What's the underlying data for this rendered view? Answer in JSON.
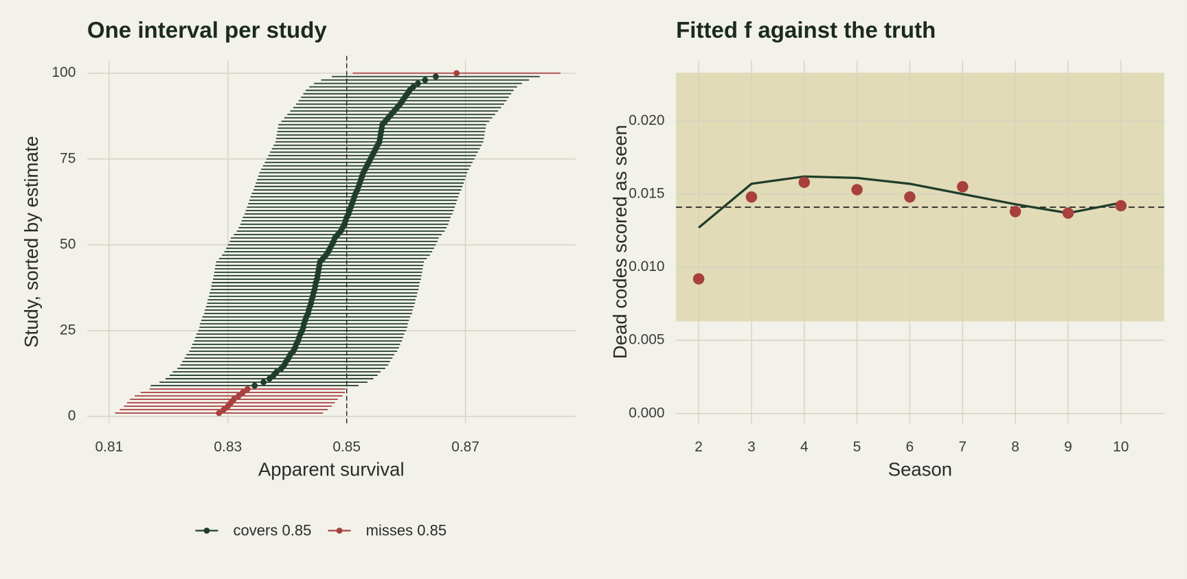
{
  "chart_data": [
    {
      "type": "interval",
      "title": "One interval per study",
      "x_label": "Apparent survival",
      "y_label": "Study, sorted by estimate",
      "xlim": [
        0.8063,
        0.8885
      ],
      "ylim": [
        -1.98,
        103.7
      ],
      "xticks": [
        0.81,
        0.83,
        0.85,
        0.87
      ],
      "yticks": [
        0,
        25,
        50,
        75,
        100
      ],
      "grid": true,
      "reference": 0.85,
      "legend": "bottom",
      "series": [
        {
          "name": "covers 0.85",
          "color": "#1f3d2a",
          "y": [
            9,
            10,
            11,
            12,
            13,
            14,
            15,
            16,
            17,
            18,
            19,
            20,
            21,
            22,
            23,
            24,
            25,
            26,
            27,
            28,
            29,
            30,
            31,
            32,
            33,
            34,
            35,
            36,
            37,
            38,
            39,
            40,
            41,
            42,
            43,
            44,
            45,
            46,
            47,
            48,
            49,
            50,
            51,
            52,
            53,
            54,
            55,
            56,
            57,
            58,
            59,
            60,
            61,
            62,
            63,
            64,
            65,
            66,
            67,
            68,
            69,
            70,
            71,
            72,
            73,
            74,
            75,
            76,
            77,
            78,
            79,
            80,
            81,
            82,
            83,
            84,
            85,
            86,
            87,
            88,
            89,
            90,
            91,
            92,
            93,
            94,
            95,
            96,
            97,
            98,
            99
          ],
          "values": [
            0.8345,
            0.836,
            0.837,
            0.8377,
            0.8382,
            0.839,
            0.8395,
            0.8398,
            0.8402,
            0.8405,
            0.841,
            0.8413,
            0.8415,
            0.8418,
            0.842,
            0.8422,
            0.8425,
            0.8427,
            0.8428,
            0.843,
            0.8432,
            0.8435,
            0.8436,
            0.8438,
            0.844,
            0.8441,
            0.8443,
            0.8444,
            0.8446,
            0.8447,
            0.8448,
            0.845,
            0.8451,
            0.8452,
            0.8453,
            0.8454,
            0.8455,
            0.846,
            0.8465,
            0.8469,
            0.8472,
            0.8475,
            0.8478,
            0.848,
            0.8485,
            0.849,
            0.8493,
            0.8496,
            0.8498,
            0.85,
            0.8503,
            0.8505,
            0.8507,
            0.8509,
            0.8511,
            0.8513,
            0.8515,
            0.8518,
            0.852,
            0.8522,
            0.8524,
            0.8526,
            0.8528,
            0.8531,
            0.8534,
            0.8537,
            0.854,
            0.8543,
            0.8546,
            0.8549,
            0.8552,
            0.8555,
            0.8556,
            0.8557,
            0.8558,
            0.8559,
            0.856,
            0.8565,
            0.857,
            0.8575,
            0.858,
            0.8585,
            0.859,
            0.8594,
            0.8598,
            0.8602,
            0.8606,
            0.8612,
            0.862,
            0.8632,
            0.865
          ],
          "errors": [
            0.0175,
            0.0175,
            0.0175,
            0.0175,
            0.0175,
            0.0175,
            0.0175,
            0.0175,
            0.0175,
            0.0175,
            0.0175,
            0.0175,
            0.0175,
            0.0175,
            0.0175,
            0.0175,
            0.0175,
            0.0175,
            0.0175,
            0.0175,
            0.0175,
            0.0175,
            0.0175,
            0.0175,
            0.0175,
            0.0175,
            0.0175,
            0.0175,
            0.0175,
            0.0175,
            0.0175,
            0.0175,
            0.0175,
            0.0175,
            0.0175,
            0.0175,
            0.0175,
            0.0175,
            0.0175,
            0.0175,
            0.0175,
            0.0175,
            0.0175,
            0.0175,
            0.0175,
            0.0175,
            0.0175,
            0.0175,
            0.0175,
            0.0175,
            0.0175,
            0.0175,
            0.0175,
            0.0175,
            0.0175,
            0.0175,
            0.0175,
            0.0175,
            0.0175,
            0.0175,
            0.0175,
            0.0175,
            0.0175,
            0.0175,
            0.0175,
            0.0175,
            0.0175,
            0.0175,
            0.0175,
            0.0175,
            0.0175,
            0.0175,
            0.0175,
            0.0175,
            0.0175,
            0.0175,
            0.0175,
            0.0175,
            0.0175,
            0.0175,
            0.0175,
            0.0175,
            0.0175,
            0.0175,
            0.0175,
            0.0175,
            0.0175,
            0.0175,
            0.0175,
            0.0175,
            0.0175
          ]
        },
        {
          "name": "misses 0.85",
          "color": "#a8403e",
          "y": [
            1,
            2,
            3,
            4,
            5,
            6,
            7,
            8,
            100
          ],
          "values": [
            0.8285,
            0.8293,
            0.83,
            0.8305,
            0.831,
            0.8318,
            0.8325,
            0.8333,
            0.8685
          ],
          "errors": [
            0.0175,
            0.0175,
            0.0175,
            0.0175,
            0.0175,
            0.0175,
            0.0172,
            0.0165,
            0.0175
          ]
        }
      ]
    },
    {
      "type": "line",
      "title": "Fitted f against the truth",
      "x_label": "Season",
      "y_label": "Dead codes scored as seen",
      "xlim": [
        1.57,
        10.82
      ],
      "ylim": [
        -0.00067,
        0.02413
      ],
      "xticks": [
        2,
        3,
        4,
        5,
        6,
        7,
        8,
        9,
        10
      ],
      "yticks": [
        {
          "value": 0,
          "label": "0.000"
        },
        0.005,
        {
          "value": 0.01,
          "label": "0.010"
        },
        0.015,
        {
          "value": 0.02,
          "label": "0.020"
        }
      ],
      "grid": true,
      "band": [
        0.0063,
        0.0233
      ],
      "band_color": "#e2dbb7",
      "reference": 0.0141,
      "x": [
        2,
        3,
        4,
        5,
        6,
        7,
        8,
        9,
        10
      ],
      "series": [
        {
          "style": "line",
          "color": "#1f3d2a",
          "values": [
            0.0127,
            0.0157,
            0.0162,
            0.0161,
            0.0157,
            0.015,
            0.0143,
            0.0137,
            0.0144
          ]
        },
        {
          "style": "points",
          "color": "#a8403e",
          "values": [
            0.0092,
            0.0148,
            0.0158,
            0.0153,
            0.0148,
            0.0155,
            0.0138,
            0.0137,
            0.0142
          ]
        }
      ]
    }
  ]
}
